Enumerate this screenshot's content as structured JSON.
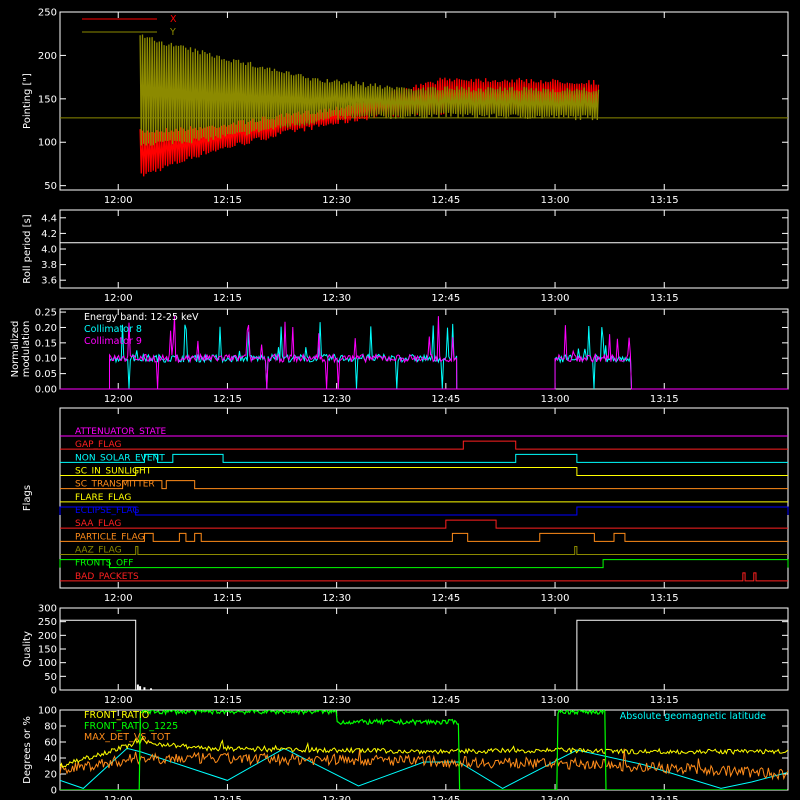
{
  "colors": {
    "background": "#000000",
    "axes": "#ffffff",
    "red": "#ff0000",
    "olive": "#8c8a00",
    "cyan": "#00ffff",
    "magenta": "#ff00ff",
    "green": "#00ff00",
    "orange": "#ff8c1a",
    "yellow": "#ffff00",
    "blue": "#0000ff",
    "crimson": "#ff2020"
  },
  "time_axis": {
    "range_hours": [
      11.8667,
      13.5333
    ],
    "tick_values_hours": [
      12.0,
      12.25,
      12.5,
      12.75,
      13.0,
      13.25
    ],
    "tick_labels": [
      "12:00",
      "12:15",
      "12:30",
      "12:45",
      "13:00",
      "13:15"
    ]
  },
  "chart_data": [
    {
      "id": "pointing",
      "type": "line",
      "ylabel": "Pointing [\"]",
      "ylim": [
        45,
        250
      ],
      "yticks": [
        50,
        100,
        150,
        200,
        250
      ],
      "legend": [
        "X",
        "Y"
      ],
      "reference_line": 128,
      "series": [
        {
          "name": "X",
          "color_key": "red",
          "data_start_hours": 12.05,
          "data_end_hours": 13.1,
          "center": [
            [
              12.05,
              150
            ],
            [
              12.2,
              150
            ],
            [
              12.5,
              148
            ],
            [
              12.75,
              150
            ],
            [
              13.1,
              150
            ]
          ],
          "lower_envelope": [
            [
              12.05,
              58
            ],
            [
              12.2,
              85
            ],
            [
              12.4,
              110
            ],
            [
              12.6,
              128
            ],
            [
              12.75,
              132
            ],
            [
              13.1,
              135
            ]
          ],
          "upper_envelope": [
            [
              12.05,
              115
            ],
            [
              12.2,
              120
            ],
            [
              12.5,
              142
            ],
            [
              12.75,
              176
            ],
            [
              13.1,
              172
            ]
          ]
        },
        {
          "name": "Y",
          "color_key": "olive",
          "data_start_hours": 12.05,
          "data_end_hours": 13.1,
          "center": [
            [
              12.05,
              160
            ],
            [
              12.3,
              158
            ],
            [
              12.6,
              148
            ],
            [
              13.1,
              145
            ]
          ],
          "lower_envelope": [
            [
              12.05,
              95
            ],
            [
              12.2,
              100
            ],
            [
              12.5,
              125
            ],
            [
              12.75,
              128
            ],
            [
              13.1,
              125
            ]
          ],
          "upper_envelope": [
            [
              12.05,
              225
            ],
            [
              12.2,
              205
            ],
            [
              12.45,
              175
            ],
            [
              12.65,
              165
            ],
            [
              13.1,
              163
            ]
          ]
        }
      ]
    },
    {
      "id": "roll_period",
      "type": "line",
      "ylabel": "Roll period [s]",
      "ylim": [
        3.5,
        4.5
      ],
      "yticks": [
        3.6,
        3.8,
        4.0,
        4.2,
        4.4
      ],
      "yticklabels": [
        "3.6",
        "3.8",
        "4.0",
        "4.2",
        "4.4"
      ],
      "series": [
        {
          "color_key": "axes",
          "value": 4.08
        }
      ]
    },
    {
      "id": "modulation",
      "type": "line",
      "ylabel": "Normalized modulation",
      "ylim": [
        0,
        0.26
      ],
      "yticks": [
        0.0,
        0.05,
        0.1,
        0.15,
        0.2,
        0.25
      ],
      "yticklabels": [
        "0.00",
        "0.05",
        "0.10",
        "0.15",
        "0.20",
        "0.25"
      ],
      "annotation": "Energy band: 12-25 keV",
      "legend": [
        "Collimator 8",
        "Collimator 9"
      ],
      "series": [
        {
          "name": "Collimator 8",
          "color_key": "cyan",
          "typical": 0.1,
          "segments": [
            [
              11.98,
              12.775
            ],
            [
              13.0,
              13.175
            ]
          ]
        },
        {
          "name": "Collimator 9",
          "color_key": "magenta",
          "typical": 0.1,
          "segments": [
            [
              11.98,
              12.775
            ],
            [
              13.0,
              13.175
            ]
          ]
        }
      ]
    },
    {
      "id": "flags",
      "type": "line",
      "ylabel": "Flags",
      "flags": [
        {
          "name": "ATTENUATOR_STATE",
          "color_key": "magenta",
          "high_intervals": []
        },
        {
          "name": "GAP_FLAG",
          "color_key": "crimson",
          "high_intervals": [
            [
              12.79,
              12.91
            ]
          ]
        },
        {
          "name": "NON_SOLAR_EVENT",
          "color_key": "cyan",
          "high_intervals": [
            [
              12.06,
              12.09
            ],
            [
              12.125,
              12.24
            ],
            [
              12.91,
              13.05
            ]
          ]
        },
        {
          "name": "SC_IN_SUNLIGHT",
          "color_key": "yellow",
          "high_intervals": [
            [
              12.04,
              13.05
            ]
          ]
        },
        {
          "name": "SC_TRANSMITTER",
          "color_key": "orange",
          "high_intervals": [
            [
              12.01,
              12.1
            ],
            [
              12.11,
              12.175
            ]
          ]
        },
        {
          "name": "FLARE_FLAG",
          "color_key": "yellow",
          "high_intervals": []
        },
        {
          "name": "ECLIPSE_FLAG",
          "color_key": "blue",
          "high_intervals": [
            [
              11.8667,
              12.04
            ],
            [
              13.05,
              13.5333
            ]
          ]
        },
        {
          "name": "SAA_FLAG",
          "color_key": "crimson",
          "high_intervals": [
            [
              12.75,
              12.865
            ]
          ]
        },
        {
          "name": "PARTICLE_FLAG",
          "color_key": "orange",
          "high_intervals": [
            [
              12.06,
              12.08
            ],
            [
              12.14,
              12.155
            ],
            [
              12.175,
              12.19
            ],
            [
              12.765,
              12.8
            ],
            [
              12.965,
              13.09
            ],
            [
              13.135,
              13.16
            ]
          ]
        },
        {
          "name": "AAZ_FLAG",
          "color_key": "olive",
          "high_intervals": [
            [
              12.04,
              12.045
            ],
            [
              13.045,
              13.05
            ]
          ]
        },
        {
          "name": "FRONTS_OFF",
          "color_key": "green",
          "high_intervals": [
            [
              11.8667,
              11.98
            ],
            [
              13.11,
              13.5333
            ]
          ]
        },
        {
          "name": "BAD_PACKETS",
          "color_key": "crimson",
          "high_intervals": [
            [
              13.43,
              13.435
            ],
            [
              13.455,
              13.46
            ]
          ]
        }
      ]
    },
    {
      "id": "quality",
      "type": "line",
      "ylabel": "Quality",
      "ylim": [
        0,
        300
      ],
      "yticks": [
        0,
        50,
        100,
        150,
        200,
        250,
        300
      ],
      "series": [
        {
          "color_key": "axes",
          "steps": [
            [
              11.8667,
              255
            ],
            [
              12.04,
              0
            ],
            [
              13.05,
              255
            ],
            [
              13.5333,
              255
            ]
          ],
          "spikes": [
            [
              12.045,
              20
            ],
            [
              12.05,
              14
            ],
            [
              12.06,
              10
            ],
            [
              12.075,
              6
            ]
          ]
        }
      ]
    },
    {
      "id": "ratios",
      "type": "line",
      "ylabel": "Degrees or %",
      "ylim": [
        0,
        100
      ],
      "yticks": [
        0,
        20,
        40,
        60,
        80,
        100
      ],
      "legend": [
        "FRONT_RATIO",
        "FRONT_RATIO_1225",
        "MAX_DET_VS_TOT"
      ],
      "annotation": "Absolute geomagnetic latitude",
      "series": [
        {
          "name": "FRONT_RATIO",
          "color_key": "yellow",
          "levels": [
            [
              11.8667,
              30
            ],
            [
              12.05,
              60
            ],
            [
              12.2,
              52
            ],
            [
              12.45,
              50
            ],
            [
              12.75,
              48
            ],
            [
              13.0,
              50
            ],
            [
              13.1,
              48
            ]
          ]
        },
        {
          "name": "FRONT_RATIO_1225",
          "color_key": "green",
          "levels": [
            [
              11.8667,
              0
            ],
            [
              11.98,
              0
            ],
            [
              12.05,
              98
            ],
            [
              12.45,
              98
            ],
            [
              12.5,
              85
            ],
            [
              12.775,
              85
            ],
            [
              12.78,
              0
            ],
            [
              13.0,
              0
            ],
            [
              13.005,
              98
            ],
            [
              13.11,
              98
            ],
            [
              13.115,
              0
            ]
          ]
        },
        {
          "name": "MAX_DET_VS_TOT",
          "color_key": "orange",
          "levels": [
            [
              11.8667,
              25
            ],
            [
              12.05,
              40
            ],
            [
              12.5,
              38
            ],
            [
              12.8,
              35
            ],
            [
              13.1,
              32
            ],
            [
              13.5333,
              20
            ]
          ]
        },
        {
          "name": "Absolute geomagnetic latitude",
          "color_key": "cyan",
          "points": [
            [
              11.8667,
              12
            ],
            [
              11.92,
              2
            ],
            [
              12.02,
              52
            ],
            [
              12.05,
              48
            ],
            [
              12.25,
              12
            ],
            [
              12.38,
              52
            ],
            [
              12.55,
              5
            ],
            [
              12.7,
              35
            ],
            [
              12.78,
              35
            ],
            [
              12.88,
              2
            ],
            [
              13.05,
              50
            ],
            [
              13.2,
              32
            ],
            [
              13.38,
              2
            ],
            [
              13.45,
              10
            ],
            [
              13.5333,
              22
            ]
          ]
        }
      ]
    }
  ]
}
